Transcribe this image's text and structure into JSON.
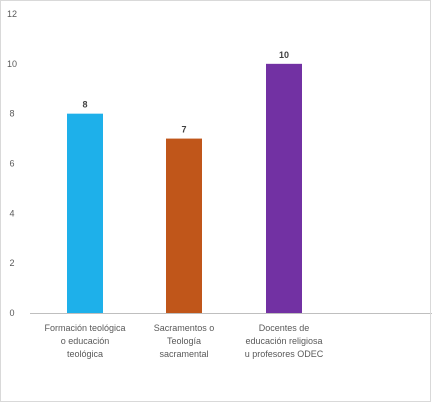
{
  "chart_data": {
    "type": "bar",
    "categories": [
      [
        "Formación teológica",
        "o educación",
        "teológica"
      ],
      [
        "Sacramentos o",
        "Teología",
        "sacramental"
      ],
      [
        "Docentes de",
        "educación religiosa",
        "u profesores ODEC"
      ]
    ],
    "values": [
      8,
      7,
      10
    ],
    "data_labels": [
      "8",
      "7",
      "10"
    ],
    "bar_colors": [
      "#1eb0ea",
      "#c0561a",
      "#7231a3"
    ],
    "ylim": [
      0,
      12
    ],
    "yticks": [
      0,
      2,
      4,
      6,
      8,
      10,
      12
    ],
    "xlabel": "",
    "ylabel": "",
    "title": "",
    "grid": false,
    "legend": "none"
  }
}
